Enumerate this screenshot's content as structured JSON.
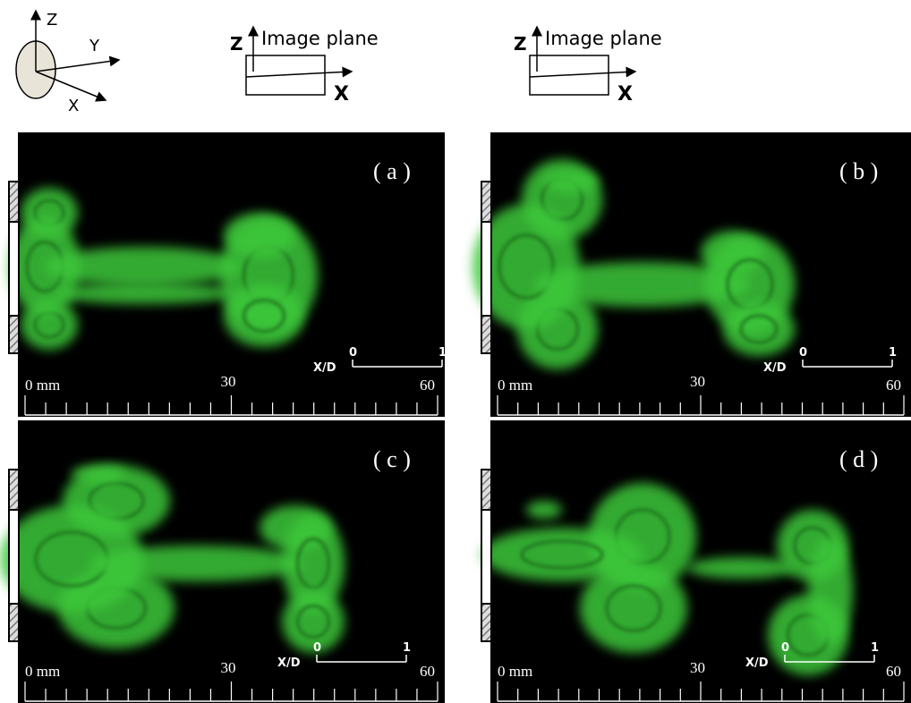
{
  "coordinate_system": {
    "z": "Z",
    "y": "Y",
    "x": "X"
  },
  "image_planes": [
    {
      "z": "Z",
      "title": "Image plane",
      "x": "X"
    },
    {
      "z": "Z",
      "title": "Image plane",
      "x": "X"
    }
  ],
  "panels": [
    {
      "label": "( a )",
      "ruler": {
        "start": "0 mm",
        "mid": "30",
        "end": "60"
      },
      "scale": {
        "axis": "X/D",
        "start": "0",
        "end": "1"
      }
    },
    {
      "label": "( b )",
      "ruler": {
        "start": "0 mm",
        "mid": "30",
        "end": "60"
      },
      "scale": {
        "axis": "X/D",
        "start": "0",
        "end": "1"
      }
    },
    {
      "label": "( c )",
      "ruler": {
        "start": "0 mm",
        "mid": "30",
        "end": "60"
      },
      "scale": {
        "axis": "X/D",
        "start": "0",
        "end": "1"
      }
    },
    {
      "label": "( d )",
      "ruler": {
        "start": "0 mm",
        "mid": "30",
        "end": "60"
      },
      "scale": {
        "axis": "X/D",
        "start": "0",
        "end": "1"
      }
    }
  ]
}
